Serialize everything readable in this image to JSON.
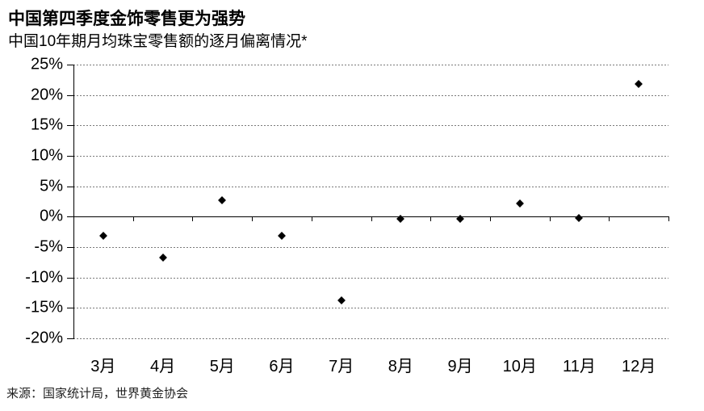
{
  "header": {
    "title": "中国第四季度金饰零售更为强势",
    "subtitle": "中国10年期月均珠宝零售额的逐月偏离情况*"
  },
  "footer": {
    "source": "来源：国家统计局，世界黄金协会"
  },
  "chart_data": {
    "type": "scatter",
    "title": "中国第四季度金饰零售更为强势",
    "subtitle": "中国10年期月均珠宝零售额的逐月偏离情况*",
    "categories": [
      "3月",
      "4月",
      "5月",
      "6月",
      "7月",
      "8月",
      "9月",
      "10月",
      "11月",
      "12月"
    ],
    "values": [
      -3.1,
      -6.7,
      2.7,
      -3.1,
      -13.8,
      -0.3,
      -0.3,
      2.2,
      -0.2,
      21.8
    ],
    "unit": "%",
    "xlabel": "",
    "ylabel": "",
    "ylim": [
      -20,
      25
    ],
    "yticks": [
      25,
      20,
      15,
      10,
      5,
      0,
      -5,
      -10,
      -15,
      -20
    ],
    "ytick_suffix": "%",
    "grid": "horizontal-dashed",
    "legend": "none",
    "marker": "diamond",
    "marker_color": "#000000",
    "gridline_color": "#7a7a7a",
    "axis_color": "#000000",
    "background_color": "#ffffff",
    "source": "来源：国家统计局，世界黄金协会"
  }
}
